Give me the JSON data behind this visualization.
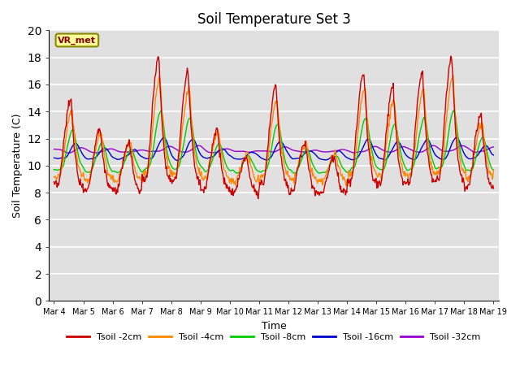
{
  "title": "Soil Temperature Set 3",
  "xlabel": "Time",
  "ylabel": "Soil Temperature (C)",
  "xlim_days": [
    3.83,
    19.17
  ],
  "ylim": [
    0,
    20
  ],
  "yticks": [
    0,
    2,
    4,
    6,
    8,
    10,
    12,
    14,
    16,
    18,
    20
  ],
  "xtick_labels": [
    "Mar 4",
    "Mar 5",
    "Mar 6",
    "Mar 7",
    "Mar 8",
    "Mar 9",
    "Mar 10",
    "Mar 11",
    "Mar 12",
    "Mar 13",
    "Mar 14",
    "Mar 15",
    "Mar 16",
    "Mar 17",
    "Mar 18",
    "Mar 19"
  ],
  "xtick_positions": [
    4,
    5,
    6,
    7,
    8,
    9,
    10,
    11,
    12,
    13,
    14,
    15,
    16,
    17,
    18,
    19
  ],
  "series_colors": [
    "#cc0000",
    "#ff8800",
    "#00cc00",
    "#0000cc",
    "#9900cc"
  ],
  "series_labels": [
    "Tsoil -2cm",
    "Tsoil -4cm",
    "Tsoil -8cm",
    "Tsoil -16cm",
    "Tsoil -32cm"
  ],
  "annotation_text": "VR_met",
  "bg_color": "#e0e0e0",
  "grid_color": "#ffffff",
  "title_fontsize": 12,
  "figsize": [
    6.4,
    4.8
  ],
  "dpi": 100
}
